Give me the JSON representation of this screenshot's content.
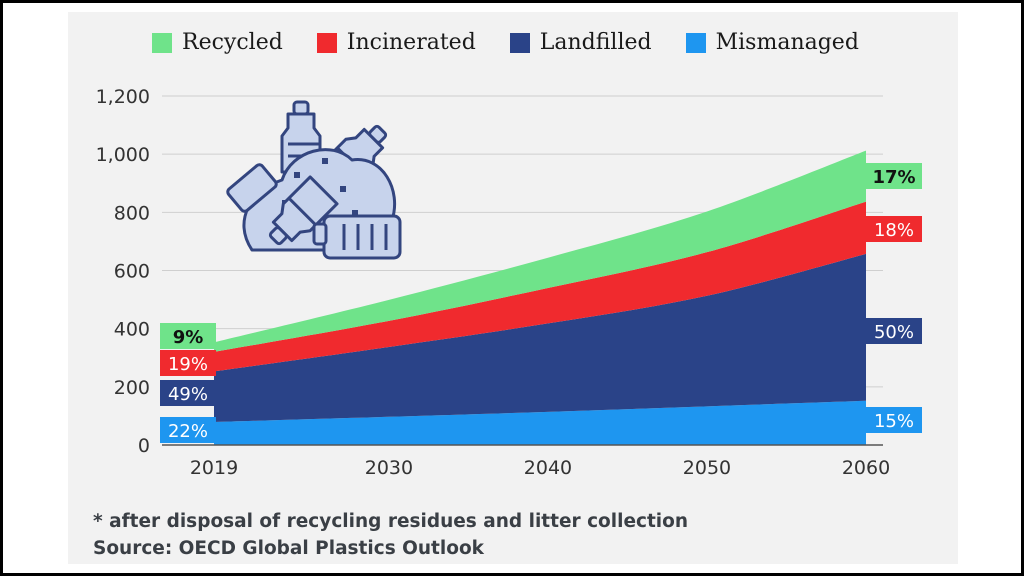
{
  "chart_data": {
    "type": "area",
    "stacked": true,
    "x": [
      2019,
      2030,
      2040,
      2050,
      2060
    ],
    "xticks": [
      "2019",
      "2030",
      "2040",
      "2050",
      "2060"
    ],
    "ylim": [
      0,
      1200
    ],
    "yticks": [
      "0",
      "200",
      "400",
      "600",
      "800",
      "1,000",
      "1,200"
    ],
    "grid": true,
    "legend_position": "top",
    "series": [
      {
        "name": "Mismanaged",
        "color": "#1e96f0",
        "values": [
          79,
          97,
          114,
          133,
          152
        ]
      },
      {
        "name": "Landfilled",
        "color": "#2a4388",
        "values": [
          174,
          240,
          304,
          380,
          505
        ]
      },
      {
        "name": "Incinerated",
        "color": "#f02a2e",
        "values": [
          67,
          90,
          122,
          150,
          180
        ]
      },
      {
        "name": "Recycled",
        "color": "#6fe38a",
        "values": [
          33,
          72,
          104,
          140,
          175
        ]
      }
    ],
    "labels_2019": [
      "22%",
      "49%",
      "19%",
      "9%"
    ],
    "labels_2060": [
      "15%",
      "50%",
      "18%",
      "17%"
    ],
    "label_text_colors": [
      "#ffffff",
      "#ffffff",
      "#ffffff",
      "#111111"
    ]
  },
  "legend": {
    "items": [
      {
        "label": "Recycled",
        "color": "#6fe38a"
      },
      {
        "label": "Incinerated",
        "color": "#f02a2e"
      },
      {
        "label": "Landfilled",
        "color": "#2a4388"
      },
      {
        "label": "Mismanaged",
        "color": "#1e96f0"
      }
    ]
  },
  "footnote": {
    "line1": "* after disposal of recycling residues and litter collection",
    "line2": "Source: OECD Global Plastics Outlook"
  },
  "icon": {
    "name": "plastic-waste-pile-icon",
    "color": "#c7d3ec",
    "stroke": "#33457f"
  }
}
